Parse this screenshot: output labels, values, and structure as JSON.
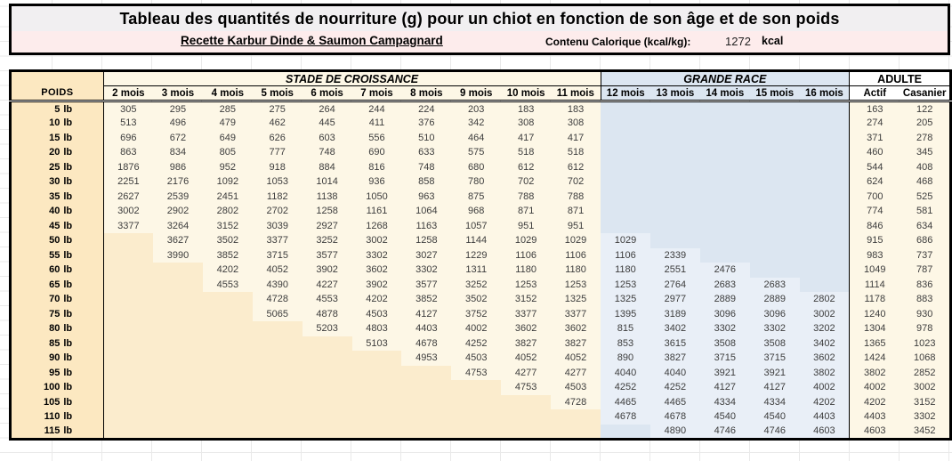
{
  "title": "Tableau des quantités de nourriture (g) pour un chiot en fonction de son âge et de son poids",
  "subtitle": "Recette Karbur Dinde & Saumon Campagnard",
  "caloric": {
    "label": "Contenu Calorique (kcal/kg):",
    "value": "1272",
    "unit": "kcal"
  },
  "colors": {
    "title_bg": "#f1eff1",
    "subtitle_bg": "#fdecec",
    "poids_column": "#fce8c1",
    "growth_cell": "#fdf7e6",
    "growth_empty": "#fbeccd",
    "large_cell": "#e9eff7",
    "large_empty": "#dce6f1",
    "adult_header": "#ffffff",
    "border": "#000000"
  },
  "table": {
    "poids_header": "POIDS",
    "unit_suffix": "lb",
    "groups": [
      {
        "label": "STADE DE CROISSANCE",
        "span": 10,
        "key": "g"
      },
      {
        "label": "GRANDE RACE",
        "span": 5,
        "key": "l"
      },
      {
        "label": "ADULTE",
        "span": 2,
        "key": "a"
      }
    ],
    "columns": [
      "2 mois",
      "3 mois",
      "4 mois",
      "5 mois",
      "6 mois",
      "7 mois",
      "8 mois",
      "9 mois",
      "10 mois",
      "11 mois",
      "12 mois",
      "13 mois",
      "14 mois",
      "15 mois",
      "16 mois",
      "Actif",
      "Casanier"
    ],
    "rows": [
      {
        "poids": "5",
        "values": [
          "305",
          "295",
          "285",
          "275",
          "264",
          "244",
          "224",
          "203",
          "183",
          "183",
          "",
          "",
          "",
          "",
          "",
          "163",
          "122"
        ]
      },
      {
        "poids": "10",
        "values": [
          "513",
          "496",
          "479",
          "462",
          "445",
          "411",
          "376",
          "342",
          "308",
          "308",
          "",
          "",
          "",
          "",
          "",
          "274",
          "205"
        ]
      },
      {
        "poids": "15",
        "values": [
          "696",
          "672",
          "649",
          "626",
          "603",
          "556",
          "510",
          "464",
          "417",
          "417",
          "",
          "",
          "",
          "",
          "",
          "371",
          "278"
        ]
      },
      {
        "poids": "20",
        "values": [
          "863",
          "834",
          "805",
          "777",
          "748",
          "690",
          "633",
          "575",
          "518",
          "518",
          "",
          "",
          "",
          "",
          "",
          "460",
          "345"
        ]
      },
      {
        "poids": "25",
        "values": [
          "1876",
          "986",
          "952",
          "918",
          "884",
          "816",
          "748",
          "680",
          "612",
          "612",
          "",
          "",
          "",
          "",
          "",
          "544",
          "408"
        ]
      },
      {
        "poids": "30",
        "values": [
          "2251",
          "2176",
          "1092",
          "1053",
          "1014",
          "936",
          "858",
          "780",
          "702",
          "702",
          "",
          "",
          "",
          "",
          "",
          "624",
          "468"
        ]
      },
      {
        "poids": "35",
        "values": [
          "2627",
          "2539",
          "2451",
          "1182",
          "1138",
          "1050",
          "963",
          "875",
          "788",
          "788",
          "",
          "",
          "",
          "",
          "",
          "700",
          "525"
        ]
      },
      {
        "poids": "40",
        "values": [
          "3002",
          "2902",
          "2802",
          "2702",
          "1258",
          "1161",
          "1064",
          "968",
          "871",
          "871",
          "",
          "",
          "",
          "",
          "",
          "774",
          "581"
        ]
      },
      {
        "poids": "45",
        "values": [
          "3377",
          "3264",
          "3152",
          "3039",
          "2927",
          "1268",
          "1163",
          "1057",
          "951",
          "951",
          "",
          "",
          "",
          "",
          "",
          "846",
          "634"
        ]
      },
      {
        "poids": "50",
        "values": [
          "",
          "3627",
          "3502",
          "3377",
          "3252",
          "3002",
          "1258",
          "1144",
          "1029",
          "1029",
          "1029",
          "",
          "",
          "",
          "",
          "915",
          "686"
        ]
      },
      {
        "poids": "55",
        "values": [
          "",
          "3990",
          "3852",
          "3715",
          "3577",
          "3302",
          "3027",
          "1229",
          "1106",
          "1106",
          "1106",
          "2339",
          "",
          "",
          "",
          "983",
          "737"
        ]
      },
      {
        "poids": "60",
        "values": [
          "",
          "",
          "4202",
          "4052",
          "3902",
          "3602",
          "3302",
          "1311",
          "1180",
          "1180",
          "1180",
          "2551",
          "2476",
          "",
          "",
          "1049",
          "787"
        ]
      },
      {
        "poids": "65",
        "values": [
          "",
          "",
          "4553",
          "4390",
          "4227",
          "3902",
          "3577",
          "3252",
          "1253",
          "1253",
          "1253",
          "2764",
          "2683",
          "2683",
          "",
          "1114",
          "836"
        ]
      },
      {
        "poids": "70",
        "values": [
          "",
          "",
          "",
          "4728",
          "4553",
          "4202",
          "3852",
          "3502",
          "3152",
          "1325",
          "1325",
          "2977",
          "2889",
          "2889",
          "2802",
          "1178",
          "883"
        ]
      },
      {
        "poids": "75",
        "values": [
          "",
          "",
          "",
          "5065",
          "4878",
          "4503",
          "4127",
          "3752",
          "3377",
          "3377",
          "1395",
          "3189",
          "3096",
          "3096",
          "3002",
          "1240",
          "930"
        ]
      },
      {
        "poids": "80",
        "values": [
          "",
          "",
          "",
          "",
          "5203",
          "4803",
          "4403",
          "4002",
          "3602",
          "3602",
          "815",
          "3402",
          "3302",
          "3302",
          "3202",
          "1304",
          "978"
        ]
      },
      {
        "poids": "85",
        "values": [
          "",
          "",
          "",
          "",
          "",
          "5103",
          "4678",
          "4252",
          "3827",
          "3827",
          "853",
          "3615",
          "3508",
          "3508",
          "3402",
          "1365",
          "1023"
        ]
      },
      {
        "poids": "90",
        "values": [
          "",
          "",
          "",
          "",
          "",
          "",
          "4953",
          "4503",
          "4052",
          "4052",
          "890",
          "3827",
          "3715",
          "3715",
          "3602",
          "1424",
          "1068"
        ]
      },
      {
        "poids": "95",
        "values": [
          "",
          "",
          "",
          "",
          "",
          "",
          "",
          "4753",
          "4277",
          "4277",
          "4040",
          "4040",
          "3921",
          "3921",
          "3802",
          "3802",
          "2852"
        ]
      },
      {
        "poids": "100",
        "values": [
          "",
          "",
          "",
          "",
          "",
          "",
          "",
          "",
          "4753",
          "4503",
          "4252",
          "4252",
          "4127",
          "4127",
          "4002",
          "4002",
          "3002"
        ]
      },
      {
        "poids": "105",
        "values": [
          "",
          "",
          "",
          "",
          "",
          "",
          "",
          "",
          "",
          "4728",
          "4465",
          "4465",
          "4334",
          "4334",
          "4202",
          "4202",
          "3152"
        ]
      },
      {
        "poids": "110",
        "values": [
          "",
          "",
          "",
          "",
          "",
          "",
          "",
          "",
          "",
          "",
          "4678",
          "4678",
          "4540",
          "4540",
          "4403",
          "4403",
          "3302"
        ]
      },
      {
        "poids": "115",
        "values": [
          "",
          "",
          "",
          "",
          "",
          "",
          "",
          "",
          "",
          "",
          "",
          "4890",
          "4746",
          "4746",
          "4603",
          "4603",
          "3452"
        ]
      }
    ]
  }
}
